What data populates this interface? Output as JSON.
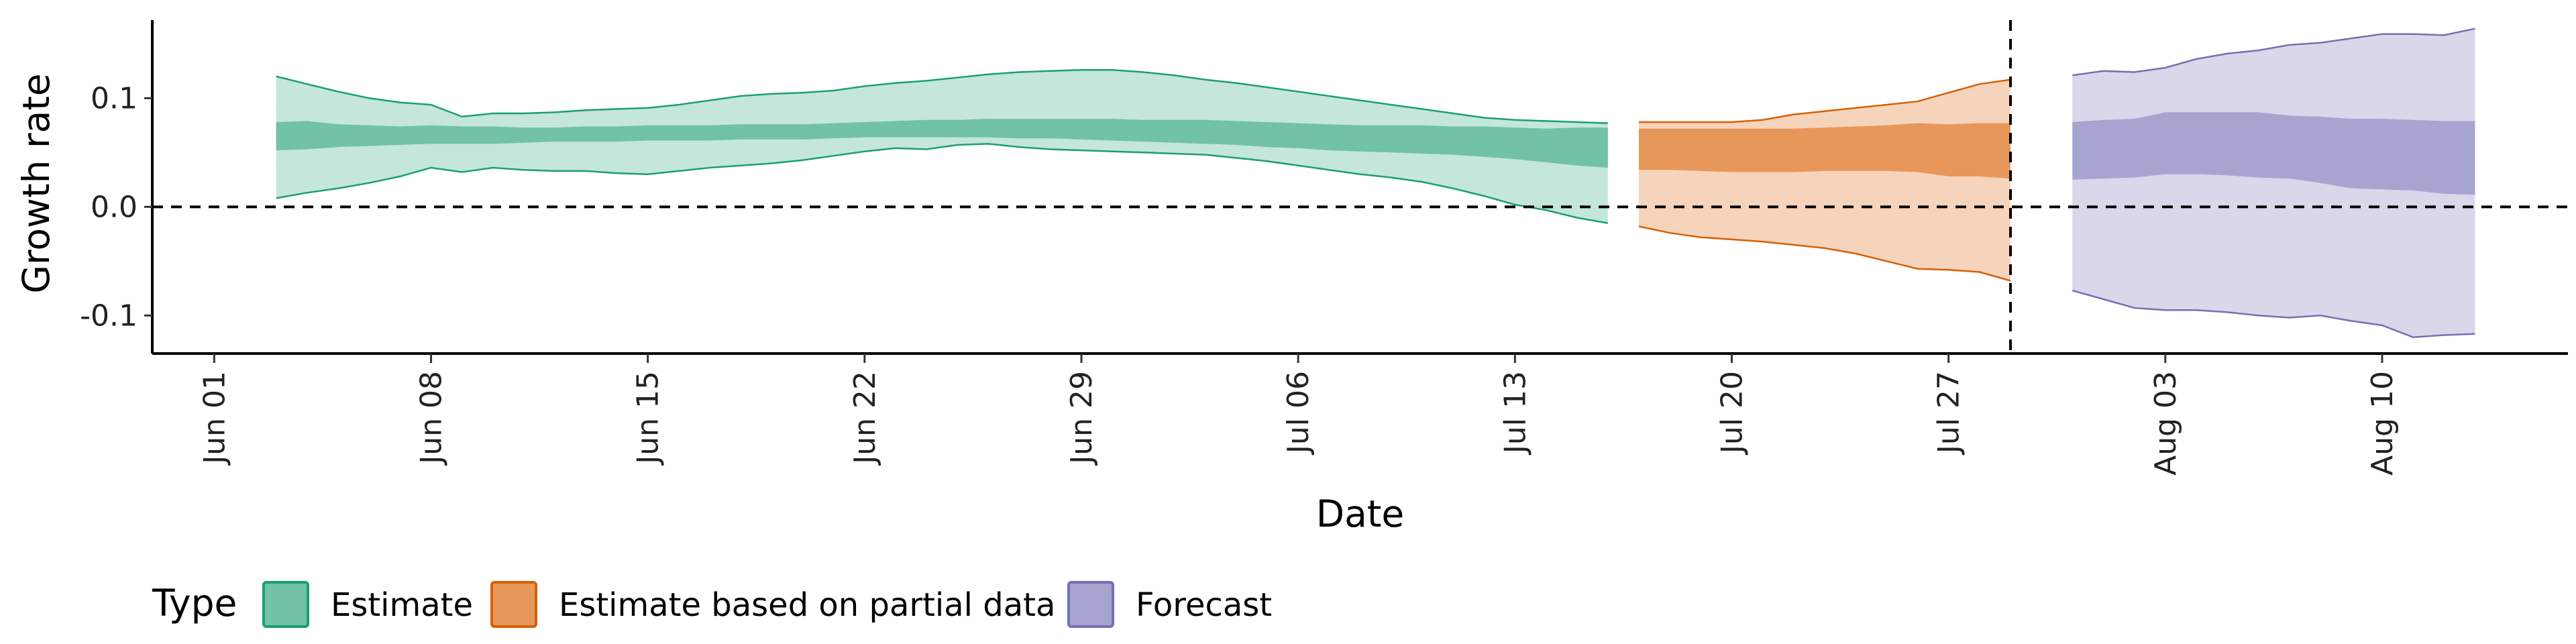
{
  "chart_data": {
    "type": "area",
    "xlabel": "Date",
    "ylabel": "Growth rate",
    "xlim": [
      "2020-05-30",
      "2020-08-16"
    ],
    "ylim": [
      -0.135,
      0.178
    ],
    "x_ticks": [
      "2020-06-01",
      "2020-06-08",
      "2020-06-15",
      "2020-06-22",
      "2020-06-29",
      "2020-07-06",
      "2020-07-13",
      "2020-07-20",
      "2020-07-27",
      "2020-08-03",
      "2020-08-10"
    ],
    "x_tick_labels": [
      "Jun 01",
      "Jun 08",
      "Jun 15",
      "Jun 22",
      "Jun 29",
      "Jul 06",
      "Jul 13",
      "Jul 20",
      "Jul 27",
      "Aug 03",
      "Aug 10"
    ],
    "y_ticks": [
      0.1,
      0.0,
      -0.1
    ],
    "y_tick_labels": [
      "0.1",
      "0.0",
      "-0.1"
    ],
    "reference_lines": {
      "horizontal_y": 0.0,
      "vertical_x": "2020-07-29"
    },
    "legend": {
      "title": "Type",
      "position": "bottom",
      "items": [
        {
          "label": "Estimate",
          "color": "#1b9e77"
        },
        {
          "label": "Estimate based on partial data",
          "color": "#d95f02"
        },
        {
          "label": "Forecast",
          "color": "#7570b3"
        }
      ]
    },
    "series": [
      {
        "name": "Estimate",
        "fill_outer": "#c4e7da",
        "fill_inner": "#72c2a5",
        "line": "#1b9e77",
        "x": [
          "2020-06-03",
          "2020-06-04",
          "2020-06-05",
          "2020-06-06",
          "2020-06-07",
          "2020-06-08",
          "2020-06-09",
          "2020-06-10",
          "2020-06-11",
          "2020-06-12",
          "2020-06-13",
          "2020-06-14",
          "2020-06-15",
          "2020-06-16",
          "2020-06-17",
          "2020-06-18",
          "2020-06-19",
          "2020-06-20",
          "2020-06-21",
          "2020-06-22",
          "2020-06-23",
          "2020-06-24",
          "2020-06-25",
          "2020-06-26",
          "2020-06-27",
          "2020-06-28",
          "2020-06-29",
          "2020-06-30",
          "2020-07-01",
          "2020-07-02",
          "2020-07-03",
          "2020-07-04",
          "2020-07-05",
          "2020-07-06",
          "2020-07-07",
          "2020-07-08",
          "2020-07-09",
          "2020-07-10",
          "2020-07-11",
          "2020-07-12",
          "2020-07-13",
          "2020-07-14",
          "2020-07-15",
          "2020-07-16"
        ],
        "upper_90": [
          0.12,
          0.113,
          0.106,
          0.1,
          0.096,
          0.094,
          0.083,
          0.086,
          0.086,
          0.087,
          0.089,
          0.09,
          0.091,
          0.094,
          0.098,
          0.102,
          0.104,
          0.105,
          0.107,
          0.111,
          0.114,
          0.116,
          0.119,
          0.122,
          0.124,
          0.125,
          0.126,
          0.126,
          0.124,
          0.121,
          0.117,
          0.114,
          0.11,
          0.106,
          0.102,
          0.098,
          0.094,
          0.09,
          0.086,
          0.082,
          0.08,
          0.079,
          0.078,
          0.077
        ],
        "lower_90": [
          0.008,
          0.013,
          0.017,
          0.022,
          0.028,
          0.036,
          0.032,
          0.036,
          0.034,
          0.033,
          0.033,
          0.031,
          0.03,
          0.033,
          0.036,
          0.038,
          0.04,
          0.043,
          0.047,
          0.051,
          0.054,
          0.053,
          0.057,
          0.058,
          0.055,
          0.053,
          0.052,
          0.051,
          0.05,
          0.049,
          0.048,
          0.045,
          0.042,
          0.038,
          0.034,
          0.03,
          0.027,
          0.023,
          0.017,
          0.01,
          0.002,
          -0.003,
          -0.01,
          -0.015
        ],
        "upper_50": [
          0.078,
          0.079,
          0.076,
          0.075,
          0.074,
          0.075,
          0.074,
          0.074,
          0.073,
          0.073,
          0.074,
          0.074,
          0.075,
          0.075,
          0.075,
          0.076,
          0.076,
          0.076,
          0.077,
          0.078,
          0.079,
          0.08,
          0.08,
          0.081,
          0.081,
          0.081,
          0.081,
          0.081,
          0.08,
          0.08,
          0.08,
          0.079,
          0.078,
          0.077,
          0.076,
          0.075,
          0.075,
          0.075,
          0.074,
          0.074,
          0.073,
          0.072,
          0.073,
          0.073
        ],
        "lower_50": [
          0.052,
          0.053,
          0.055,
          0.056,
          0.057,
          0.058,
          0.058,
          0.058,
          0.059,
          0.06,
          0.06,
          0.06,
          0.061,
          0.061,
          0.061,
          0.062,
          0.062,
          0.062,
          0.063,
          0.064,
          0.064,
          0.064,
          0.064,
          0.064,
          0.063,
          0.063,
          0.062,
          0.061,
          0.06,
          0.059,
          0.058,
          0.057,
          0.055,
          0.054,
          0.052,
          0.051,
          0.05,
          0.049,
          0.048,
          0.046,
          0.044,
          0.041,
          0.038,
          0.036
        ]
      },
      {
        "name": "Estimate based on partial data",
        "fill_outer": "#f6d4bb",
        "fill_inner": "#e8975b",
        "line": "#d95f02",
        "x": [
          "2020-07-17",
          "2020-07-18",
          "2020-07-19",
          "2020-07-20",
          "2020-07-21",
          "2020-07-22",
          "2020-07-23",
          "2020-07-24",
          "2020-07-25",
          "2020-07-26",
          "2020-07-27",
          "2020-07-28",
          "2020-07-29"
        ],
        "upper_90": [
          0.078,
          0.078,
          0.078,
          0.078,
          0.08,
          0.085,
          0.088,
          0.091,
          0.094,
          0.097,
          0.105,
          0.113,
          0.117
        ],
        "lower_90": [
          -0.018,
          -0.024,
          -0.028,
          -0.03,
          -0.032,
          -0.035,
          -0.038,
          -0.043,
          -0.05,
          -0.057,
          -0.058,
          -0.06,
          -0.068
        ],
        "upper_50": [
          0.072,
          0.072,
          0.072,
          0.072,
          0.072,
          0.072,
          0.073,
          0.074,
          0.075,
          0.077,
          0.076,
          0.077,
          0.077
        ],
        "lower_50": [
          0.034,
          0.034,
          0.033,
          0.032,
          0.032,
          0.032,
          0.033,
          0.033,
          0.033,
          0.032,
          0.028,
          0.028,
          0.026
        ]
      },
      {
        "name": "Forecast",
        "fill_outer": "#d9d8ea",
        "fill_inner": "#a8a4d1",
        "line": "#7570b3",
        "x": [
          "2020-07-31",
          "2020-08-01",
          "2020-08-02",
          "2020-08-03",
          "2020-08-04",
          "2020-08-05",
          "2020-08-06",
          "2020-08-07",
          "2020-08-08",
          "2020-08-09",
          "2020-08-10",
          "2020-08-11",
          "2020-08-12",
          "2020-08-13"
        ],
        "upper_90": [
          0.121,
          0.125,
          0.124,
          0.128,
          0.136,
          0.141,
          0.144,
          0.149,
          0.151,
          0.155,
          0.159,
          0.159,
          0.158,
          0.164
        ],
        "lower_90": [
          -0.077,
          -0.085,
          -0.093,
          -0.095,
          -0.095,
          -0.097,
          -0.1,
          -0.102,
          -0.1,
          -0.105,
          -0.109,
          -0.12,
          -0.118,
          -0.117
        ],
        "upper_50": [
          0.078,
          0.08,
          0.081,
          0.087,
          0.087,
          0.087,
          0.087,
          0.084,
          0.083,
          0.081,
          0.081,
          0.08,
          0.079,
          0.079
        ],
        "lower_50": [
          0.025,
          0.026,
          0.027,
          0.03,
          0.03,
          0.029,
          0.027,
          0.026,
          0.022,
          0.017,
          0.016,
          0.015,
          0.012,
          0.011
        ]
      }
    ]
  }
}
